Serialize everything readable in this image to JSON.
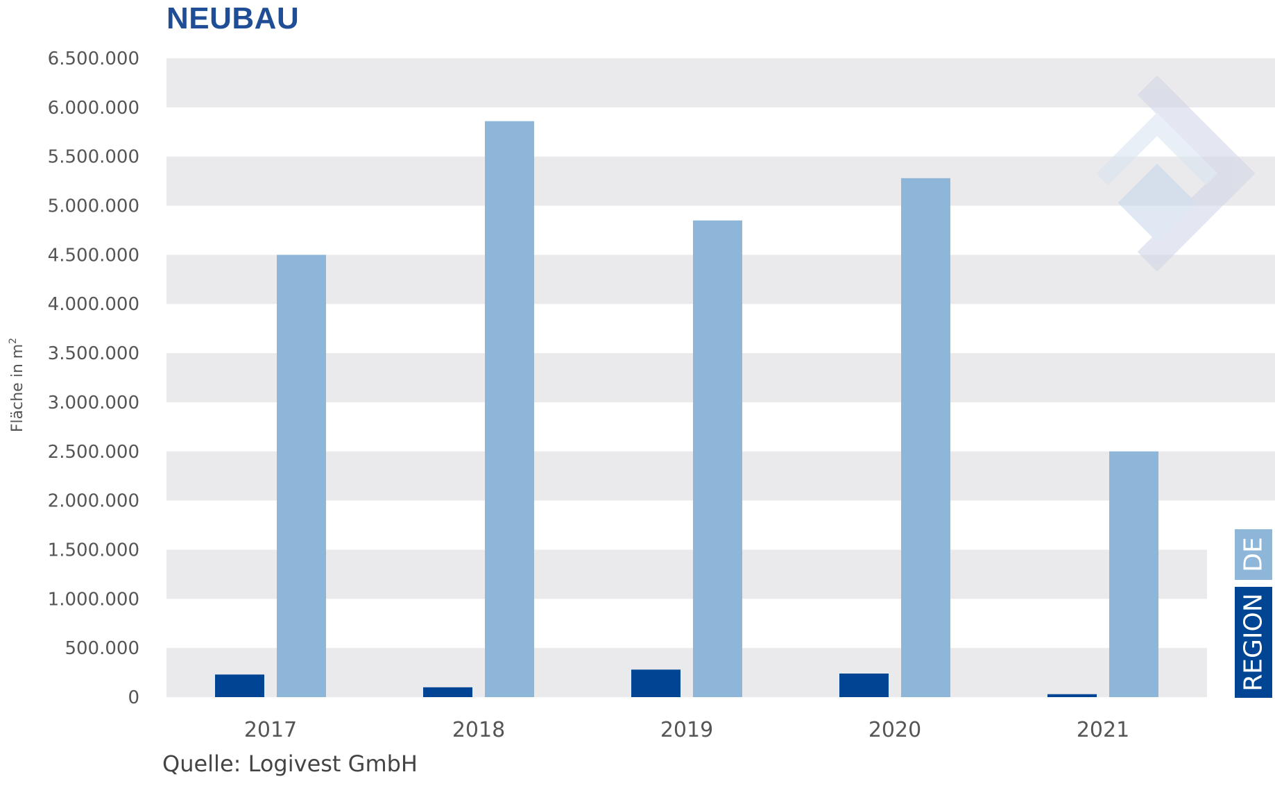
{
  "title": "NEUBAU",
  "source": "Quelle: Logivest GmbH",
  "chart_data": {
    "type": "bar",
    "categories": [
      "2017",
      "2018",
      "2019",
      "2020",
      "2021"
    ],
    "series": [
      {
        "name": "REGION",
        "color": "#004494",
        "values": [
          230000,
          100000,
          280000,
          240000,
          30000
        ]
      },
      {
        "name": "DE",
        "color": "#8db6d8",
        "values": [
          4500000,
          5860000,
          4850000,
          5280000,
          2500000
        ]
      }
    ],
    "ylabel": "Fläche in m",
    "ylabel_sup": "2",
    "ylim": [
      0,
      6500000
    ],
    "yticks": [
      0,
      500000,
      1000000,
      1500000,
      2000000,
      2500000,
      3000000,
      3500000,
      4000000,
      4500000,
      5000000,
      5500000,
      6000000,
      6500000
    ],
    "ytick_labels": [
      "0",
      "500.000",
      "1.000.000",
      "1.500.000",
      "2.000.000",
      "2.500.000",
      "3.000.000",
      "3.500.000",
      "4.000.000",
      "4.500.000",
      "5.000.000",
      "5.500.000",
      "6.000.000",
      "6.500.000"
    ],
    "grid": "alternating horizontal bands",
    "legend": "right, vertical"
  }
}
